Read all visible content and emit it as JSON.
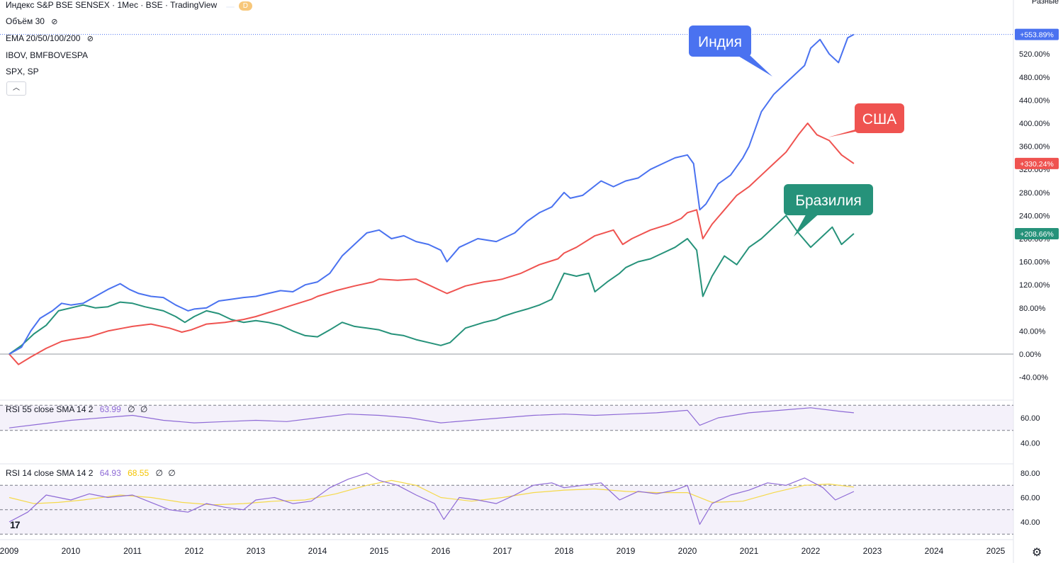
{
  "header": {
    "symbol_title": "Индекс S&P BSE SENSEX · 1Мес · BSE · TradingView",
    "badge_1": "",
    "badge_2": "D",
    "volume_label": "Объём 30",
    "ema_label": "EMA 20/50/100/200",
    "overlay_1": "IBOV, BMFBOVESPA",
    "overlay_2": "SPX, SP",
    "collapse_icon": "chevron-up-icon",
    "scale_mode": "Разные"
  },
  "rsi_panels": [
    {
      "label": "RSI 55 close SMA 14 2",
      "value_1": "63.99",
      "value_2": "",
      "ticks": [
        "60.00",
        "40.00"
      ]
    },
    {
      "label": "RSI 14 close SMA 14 2",
      "value_1": "64.93",
      "value_2": "68.55",
      "ticks": [
        "80.00",
        "60.00",
        "40.00"
      ]
    }
  ],
  "colors": {
    "india": "#4a72f0",
    "usa": "#ef5350",
    "brazil": "#26927a",
    "rsi": "#8e6ad6",
    "rsi_ma": "#f5d94a"
  },
  "chart_data": {
    "type": "line",
    "x_years": [
      "2009",
      "2010",
      "2011",
      "2012",
      "2013",
      "2014",
      "2015",
      "2016",
      "2017",
      "2018",
      "2019",
      "2020",
      "2021",
      "2022",
      "2023",
      "2024",
      "2025"
    ],
    "y_ticks": [
      "520.00%",
      "480.00%",
      "440.00%",
      "400.00%",
      "360.00%",
      "320.00%",
      "280.00%",
      "240.00%",
      "200.00%",
      "160.00%",
      "120.00%",
      "80.00%",
      "40.00%",
      "0.00%",
      "-40.00%"
    ],
    "ylim": [
      -40,
      560
    ],
    "annotations": [
      {
        "text": "Индия",
        "series": "India"
      },
      {
        "text": "США",
        "series": "USA"
      },
      {
        "text": "Бразилия",
        "series": "Brazil"
      }
    ],
    "series": [
      {
        "name": "India",
        "last_label": "+553.89%",
        "points": [
          [
            2009.0,
            0
          ],
          [
            2009.2,
            12
          ],
          [
            2009.35,
            40
          ],
          [
            2009.5,
            62
          ],
          [
            2009.7,
            75
          ],
          [
            2009.85,
            88
          ],
          [
            2010.0,
            85
          ],
          [
            2010.2,
            88
          ],
          [
            2010.4,
            100
          ],
          [
            2010.6,
            112
          ],
          [
            2010.8,
            122
          ],
          [
            2010.95,
            112
          ],
          [
            2011.1,
            105
          ],
          [
            2011.3,
            100
          ],
          [
            2011.5,
            98
          ],
          [
            2011.7,
            85
          ],
          [
            2011.9,
            75
          ],
          [
            2012.0,
            78
          ],
          [
            2012.2,
            80
          ],
          [
            2012.4,
            92
          ],
          [
            2012.6,
            95
          ],
          [
            2012.8,
            98
          ],
          [
            2013.0,
            100
          ],
          [
            2013.2,
            105
          ],
          [
            2013.4,
            110
          ],
          [
            2013.6,
            108
          ],
          [
            2013.8,
            120
          ],
          [
            2014.0,
            125
          ],
          [
            2014.2,
            140
          ],
          [
            2014.4,
            170
          ],
          [
            2014.6,
            190
          ],
          [
            2014.8,
            210
          ],
          [
            2015.0,
            215
          ],
          [
            2015.2,
            200
          ],
          [
            2015.4,
            205
          ],
          [
            2015.6,
            195
          ],
          [
            2015.8,
            190
          ],
          [
            2016.0,
            180
          ],
          [
            2016.1,
            160
          ],
          [
            2016.3,
            185
          ],
          [
            2016.6,
            200
          ],
          [
            2016.9,
            195
          ],
          [
            2017.0,
            200
          ],
          [
            2017.2,
            210
          ],
          [
            2017.4,
            230
          ],
          [
            2017.6,
            245
          ],
          [
            2017.8,
            255
          ],
          [
            2018.0,
            280
          ],
          [
            2018.1,
            270
          ],
          [
            2018.3,
            275
          ],
          [
            2018.6,
            300
          ],
          [
            2018.8,
            290
          ],
          [
            2019.0,
            300
          ],
          [
            2019.2,
            305
          ],
          [
            2019.4,
            320
          ],
          [
            2019.6,
            330
          ],
          [
            2019.8,
            340
          ],
          [
            2020.0,
            345
          ],
          [
            2020.1,
            330
          ],
          [
            2020.2,
            250
          ],
          [
            2020.3,
            260
          ],
          [
            2020.5,
            295
          ],
          [
            2020.7,
            310
          ],
          [
            2020.9,
            340
          ],
          [
            2021.0,
            360
          ],
          [
            2021.2,
            420
          ],
          [
            2021.4,
            450
          ],
          [
            2021.6,
            470
          ],
          [
            2021.8,
            490
          ],
          [
            2021.9,
            500
          ],
          [
            2022.0,
            530
          ],
          [
            2022.15,
            545
          ],
          [
            2022.3,
            520
          ],
          [
            2022.45,
            505
          ],
          [
            2022.6,
            548
          ],
          [
            2022.7,
            553.89
          ]
        ]
      },
      {
        "name": "USA",
        "last_label": "+330.24%",
        "points": [
          [
            2009.0,
            0
          ],
          [
            2009.15,
            -18
          ],
          [
            2009.35,
            -5
          ],
          [
            2009.6,
            10
          ],
          [
            2009.85,
            22
          ],
          [
            2010.0,
            25
          ],
          [
            2010.3,
            30
          ],
          [
            2010.6,
            40
          ],
          [
            2010.85,
            45
          ],
          [
            2011.0,
            48
          ],
          [
            2011.3,
            52
          ],
          [
            2011.6,
            45
          ],
          [
            2011.8,
            38
          ],
          [
            2011.95,
            42
          ],
          [
            2012.2,
            52
          ],
          [
            2012.5,
            55
          ],
          [
            2012.8,
            60
          ],
          [
            2013.0,
            65
          ],
          [
            2013.3,
            75
          ],
          [
            2013.6,
            85
          ],
          [
            2013.9,
            95
          ],
          [
            2014.0,
            100
          ],
          [
            2014.3,
            110
          ],
          [
            2014.6,
            118
          ],
          [
            2014.9,
            125
          ],
          [
            2015.0,
            130
          ],
          [
            2015.3,
            128
          ],
          [
            2015.6,
            130
          ],
          [
            2015.8,
            120
          ],
          [
            2016.0,
            110
          ],
          [
            2016.1,
            105
          ],
          [
            2016.4,
            118
          ],
          [
            2016.7,
            125
          ],
          [
            2016.9,
            128
          ],
          [
            2017.0,
            130
          ],
          [
            2017.3,
            140
          ],
          [
            2017.6,
            155
          ],
          [
            2017.9,
            165
          ],
          [
            2018.0,
            175
          ],
          [
            2018.2,
            185
          ],
          [
            2018.5,
            205
          ],
          [
            2018.8,
            215
          ],
          [
            2018.95,
            190
          ],
          [
            2019.1,
            200
          ],
          [
            2019.4,
            215
          ],
          [
            2019.7,
            225
          ],
          [
            2019.9,
            235
          ],
          [
            2020.0,
            245
          ],
          [
            2020.15,
            250
          ],
          [
            2020.25,
            200
          ],
          [
            2020.4,
            225
          ],
          [
            2020.6,
            250
          ],
          [
            2020.8,
            275
          ],
          [
            2021.0,
            290
          ],
          [
            2021.2,
            310
          ],
          [
            2021.4,
            330
          ],
          [
            2021.6,
            350
          ],
          [
            2021.8,
            380
          ],
          [
            2021.95,
            400
          ],
          [
            2022.1,
            380
          ],
          [
            2022.3,
            370
          ],
          [
            2022.5,
            345
          ],
          [
            2022.7,
            330.24
          ]
        ]
      },
      {
        "name": "Brazil",
        "last_label": "+208.66%",
        "points": [
          [
            2009.0,
            0
          ],
          [
            2009.2,
            15
          ],
          [
            2009.4,
            35
          ],
          [
            2009.6,
            50
          ],
          [
            2009.8,
            75
          ],
          [
            2010.0,
            80
          ],
          [
            2010.2,
            85
          ],
          [
            2010.4,
            80
          ],
          [
            2010.6,
            82
          ],
          [
            2010.8,
            90
          ],
          [
            2011.0,
            88
          ],
          [
            2011.2,
            82
          ],
          [
            2011.5,
            75
          ],
          [
            2011.7,
            65
          ],
          [
            2011.85,
            55
          ],
          [
            2012.0,
            65
          ],
          [
            2012.2,
            75
          ],
          [
            2012.4,
            70
          ],
          [
            2012.6,
            60
          ],
          [
            2012.8,
            55
          ],
          [
            2013.0,
            58
          ],
          [
            2013.2,
            55
          ],
          [
            2013.4,
            50
          ],
          [
            2013.6,
            40
          ],
          [
            2013.8,
            32
          ],
          [
            2014.0,
            30
          ],
          [
            2014.2,
            42
          ],
          [
            2014.4,
            55
          ],
          [
            2014.6,
            48
          ],
          [
            2014.8,
            45
          ],
          [
            2015.0,
            42
          ],
          [
            2015.2,
            35
          ],
          [
            2015.4,
            32
          ],
          [
            2015.6,
            25
          ],
          [
            2015.8,
            20
          ],
          [
            2016.0,
            15
          ],
          [
            2016.15,
            20
          ],
          [
            2016.4,
            45
          ],
          [
            2016.7,
            55
          ],
          [
            2016.9,
            60
          ],
          [
            2017.0,
            65
          ],
          [
            2017.2,
            72
          ],
          [
            2017.4,
            78
          ],
          [
            2017.6,
            85
          ],
          [
            2017.8,
            95
          ],
          [
            2018.0,
            140
          ],
          [
            2018.2,
            135
          ],
          [
            2018.4,
            140
          ],
          [
            2018.5,
            108
          ],
          [
            2018.7,
            125
          ],
          [
            2018.9,
            140
          ],
          [
            2019.0,
            150
          ],
          [
            2019.2,
            160
          ],
          [
            2019.4,
            165
          ],
          [
            2019.6,
            175
          ],
          [
            2019.8,
            185
          ],
          [
            2020.0,
            200
          ],
          [
            2020.15,
            180
          ],
          [
            2020.25,
            100
          ],
          [
            2020.4,
            135
          ],
          [
            2020.6,
            170
          ],
          [
            2020.8,
            155
          ],
          [
            2021.0,
            185
          ],
          [
            2021.2,
            200
          ],
          [
            2021.4,
            220
          ],
          [
            2021.6,
            240
          ],
          [
            2021.8,
            210
          ],
          [
            2022.0,
            185
          ],
          [
            2022.2,
            205
          ],
          [
            2022.35,
            220
          ],
          [
            2022.5,
            190
          ],
          [
            2022.7,
            208.66
          ]
        ]
      }
    ],
    "rsi_55": [
      [
        2009.0,
        52
      ],
      [
        2009.5,
        55
      ],
      [
        2010.0,
        58
      ],
      [
        2010.5,
        60
      ],
      [
        2011.0,
        62
      ],
      [
        2011.5,
        58
      ],
      [
        2012.0,
        56
      ],
      [
        2012.5,
        57
      ],
      [
        2013.0,
        58
      ],
      [
        2013.5,
        57
      ],
      [
        2014.0,
        60
      ],
      [
        2014.5,
        63
      ],
      [
        2015.0,
        62
      ],
      [
        2015.5,
        60
      ],
      [
        2016.0,
        56
      ],
      [
        2016.5,
        58
      ],
      [
        2017.0,
        60
      ],
      [
        2017.5,
        62
      ],
      [
        2018.0,
        63
      ],
      [
        2018.5,
        62
      ],
      [
        2019.0,
        63
      ],
      [
        2019.5,
        64
      ],
      [
        2020.0,
        66
      ],
      [
        2020.2,
        54
      ],
      [
        2020.5,
        60
      ],
      [
        2021.0,
        64
      ],
      [
        2021.5,
        66
      ],
      [
        2022.0,
        68
      ],
      [
        2022.5,
        65
      ],
      [
        2022.7,
        64
      ]
    ],
    "rsi_14": [
      [
        2009.0,
        40
      ],
      [
        2009.3,
        48
      ],
      [
        2009.6,
        62
      ],
      [
        2010.0,
        58
      ],
      [
        2010.3,
        63
      ],
      [
        2010.6,
        60
      ],
      [
        2011.0,
        62
      ],
      [
        2011.3,
        56
      ],
      [
        2011.6,
        50
      ],
      [
        2011.9,
        48
      ],
      [
        2012.2,
        55
      ],
      [
        2012.5,
        52
      ],
      [
        2012.8,
        50
      ],
      [
        2013.0,
        58
      ],
      [
        2013.3,
        60
      ],
      [
        2013.6,
        55
      ],
      [
        2013.9,
        57
      ],
      [
        2014.2,
        68
      ],
      [
        2014.5,
        75
      ],
      [
        2014.8,
        80
      ],
      [
        2015.0,
        74
      ],
      [
        2015.3,
        70
      ],
      [
        2015.6,
        62
      ],
      [
        2015.9,
        55
      ],
      [
        2016.05,
        42
      ],
      [
        2016.3,
        60
      ],
      [
        2016.6,
        58
      ],
      [
        2016.9,
        55
      ],
      [
        2017.2,
        62
      ],
      [
        2017.5,
        70
      ],
      [
        2017.8,
        72
      ],
      [
        2018.0,
        68
      ],
      [
        2018.3,
        70
      ],
      [
        2018.6,
        72
      ],
      [
        2018.9,
        58
      ],
      [
        2019.2,
        65
      ],
      [
        2019.5,
        63
      ],
      [
        2019.8,
        66
      ],
      [
        2020.0,
        70
      ],
      [
        2020.2,
        38
      ],
      [
        2020.4,
        55
      ],
      [
        2020.7,
        62
      ],
      [
        2021.0,
        66
      ],
      [
        2021.3,
        72
      ],
      [
        2021.6,
        70
      ],
      [
        2021.9,
        76
      ],
      [
        2022.2,
        68
      ],
      [
        2022.4,
        58
      ],
      [
        2022.7,
        64.93
      ]
    ],
    "rsi_14_ma": [
      [
        2009.0,
        60
      ],
      [
        2009.4,
        55
      ],
      [
        2009.8,
        56
      ],
      [
        2010.2,
        58
      ],
      [
        2010.8,
        62
      ],
      [
        2011.3,
        60
      ],
      [
        2011.8,
        56
      ],
      [
        2012.3,
        54
      ],
      [
        2012.8,
        55
      ],
      [
        2013.3,
        57
      ],
      [
        2013.8,
        58
      ],
      [
        2014.3,
        63
      ],
      [
        2014.8,
        70
      ],
      [
        2015.2,
        74
      ],
      [
        2015.6,
        70
      ],
      [
        2016.0,
        60
      ],
      [
        2016.5,
        57
      ],
      [
        2017.0,
        60
      ],
      [
        2017.5,
        64
      ],
      [
        2018.0,
        66
      ],
      [
        2018.5,
        67
      ],
      [
        2019.0,
        65
      ],
      [
        2019.5,
        64
      ],
      [
        2020.0,
        64
      ],
      [
        2020.4,
        56
      ],
      [
        2020.9,
        57
      ],
      [
        2021.4,
        64
      ],
      [
        2021.9,
        70
      ],
      [
        2022.3,
        71
      ],
      [
        2022.7,
        68.55
      ]
    ]
  }
}
